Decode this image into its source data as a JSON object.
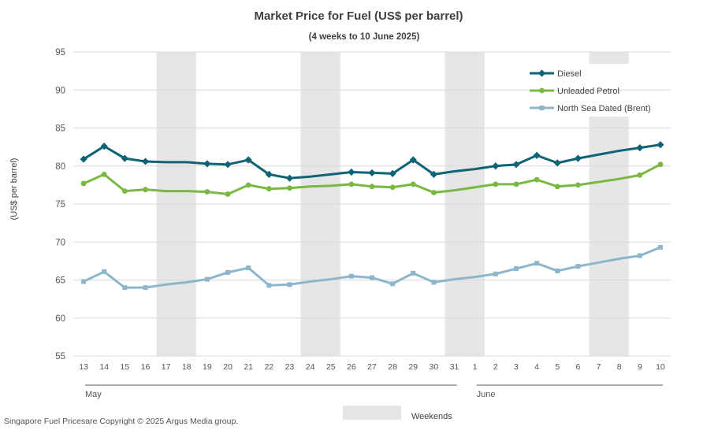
{
  "chart_data": {
    "type": "line",
    "title": "Market Price for Fuel (US$ per barrel)",
    "subtitle": "(4 weeks to 10 June 2025)",
    "ylabel": "(US$ per barrel)",
    "xlabel": "",
    "ylim": [
      55,
      95
    ],
    "yticks": [
      55,
      60,
      65,
      70,
      75,
      80,
      85,
      90,
      95
    ],
    "grid": true,
    "legend_position": "top-right",
    "categories": [
      "13",
      "14",
      "15",
      "16",
      "17",
      "18",
      "19",
      "20",
      "21",
      "22",
      "23",
      "24",
      "25",
      "26",
      "27",
      "28",
      "29",
      "30",
      "31",
      "1",
      "2",
      "3",
      "4",
      "5",
      "6",
      "7",
      "8",
      "9",
      "10"
    ],
    "months": [
      {
        "label": "May",
        "from_index": 0,
        "to_index": 18
      },
      {
        "label": "June",
        "from_index": 19,
        "to_index": 28
      }
    ],
    "weekends": [
      [
        4,
        5
      ],
      [
        11,
        12
      ],
      [
        18,
        19
      ],
      [
        25,
        26
      ]
    ],
    "weekend_label": "Weekends",
    "series": [
      {
        "name": "Diesel",
        "color": "#0e6476",
        "marker": "diamond",
        "values": [
          80.9,
          82.6,
          81.0,
          80.6,
          80.5,
          80.5,
          80.3,
          80.2,
          80.8,
          78.9,
          78.4,
          78.6,
          78.9,
          79.2,
          79.1,
          79.0,
          80.8,
          78.9,
          79.3,
          79.6,
          80.0,
          80.2,
          81.4,
          80.4,
          81.0,
          81.5,
          82.0,
          82.4,
          82.8
        ],
        "marked": [
          true,
          true,
          true,
          true,
          false,
          false,
          true,
          true,
          true,
          true,
          true,
          false,
          false,
          true,
          true,
          true,
          true,
          true,
          false,
          false,
          true,
          true,
          true,
          true,
          true,
          false,
          false,
          true,
          true
        ]
      },
      {
        "name": "Unleaded Petrol",
        "color": "#7ab743",
        "marker": "circle",
        "values": [
          77.7,
          78.9,
          76.7,
          76.9,
          76.7,
          76.7,
          76.6,
          76.3,
          77.5,
          77.0,
          77.1,
          77.3,
          77.4,
          77.6,
          77.3,
          77.2,
          77.6,
          76.5,
          76.8,
          77.2,
          77.6,
          77.6,
          78.2,
          77.3,
          77.5,
          77.9,
          78.3,
          78.8,
          80.2
        ],
        "marked": [
          true,
          true,
          true,
          true,
          false,
          false,
          true,
          true,
          true,
          true,
          true,
          false,
          false,
          true,
          true,
          true,
          true,
          true,
          false,
          false,
          true,
          true,
          true,
          true,
          true,
          false,
          false,
          true,
          true
        ]
      },
      {
        "name": "North Sea Dated (Brent)",
        "color": "#8db6cd",
        "marker": "square",
        "values": [
          64.8,
          66.1,
          64.0,
          64.0,
          64.4,
          64.7,
          65.1,
          66.0,
          66.6,
          64.3,
          64.4,
          64.8,
          65.1,
          65.5,
          65.3,
          64.5,
          65.9,
          64.7,
          65.1,
          65.4,
          65.8,
          66.5,
          67.2,
          66.2,
          66.8,
          67.3,
          67.8,
          68.2,
          69.3
        ],
        "marked": [
          true,
          true,
          true,
          true,
          false,
          false,
          true,
          true,
          true,
          true,
          true,
          false,
          false,
          true,
          true,
          true,
          true,
          true,
          false,
          false,
          true,
          true,
          true,
          true,
          true,
          false,
          false,
          true,
          true
        ]
      }
    ]
  },
  "footer": {
    "copyright": "Singapore Fuel Pricesare Copyright © 2025 Argus Media group."
  },
  "colors": {
    "weekend_band": "#e6e6e6",
    "grid": "#d9d9d9",
    "axis_text": "#555555",
    "title_text": "#404040"
  }
}
